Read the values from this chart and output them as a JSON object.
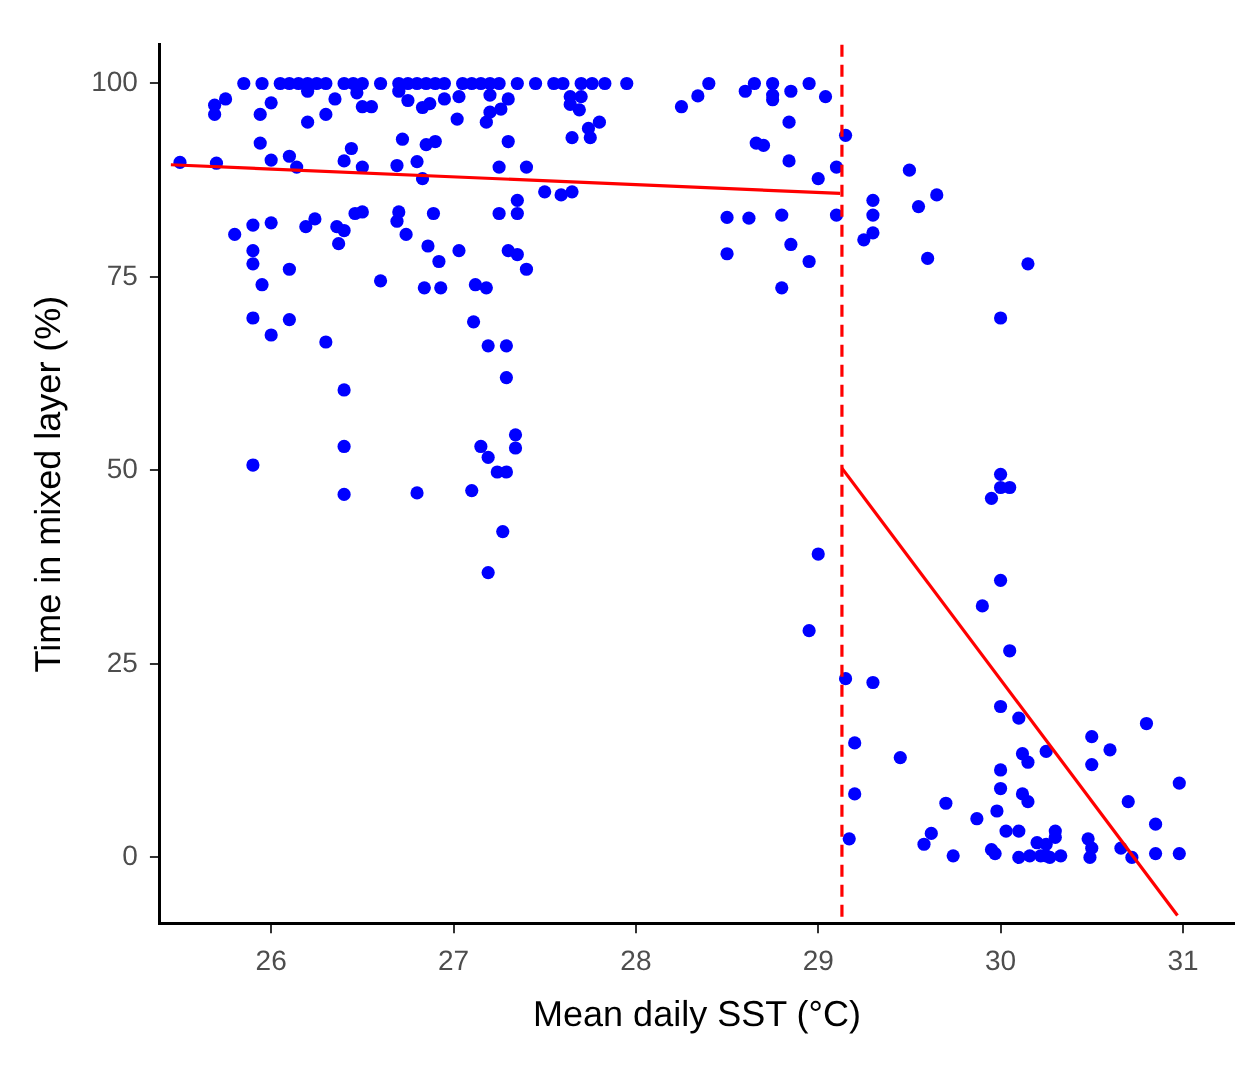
{
  "chart_data": {
    "type": "scatter",
    "xlabel": "Mean daily SST (°C)",
    "ylabel": "Time in mixed layer (%)",
    "xlim": [
      25.39,
      31.28
    ],
    "xticks": [
      26,
      27,
      28,
      29,
      30,
      31
    ],
    "ylim": [
      -8.5,
      105
    ],
    "yticks": [
      0,
      25,
      50,
      75,
      100
    ],
    "grid": false,
    "legend": false,
    "ref_lines": [
      {
        "axis": "x",
        "value": 29.13,
        "color": "#ff0000",
        "line_style": "dashed"
      }
    ],
    "series": [
      {
        "type": "scatter",
        "color": "#0000ff",
        "marker": "circle",
        "x": [
          25.85,
          25.95,
          26.05,
          26.1,
          26.15,
          26.2,
          26.25,
          26.3,
          26.4,
          26.45,
          26.5,
          26.6,
          26.7,
          26.75,
          26.8,
          26.85,
          26.9,
          26.95,
          27.05,
          27.1,
          27.15,
          27.2,
          27.25,
          27.35,
          27.45,
          27.55,
          27.6,
          27.7,
          27.76,
          27.83,
          27.95,
          28.4,
          28.65,
          28.75,
          28.95,
          25.75,
          26.0,
          26.2,
          26.35,
          26.55,
          26.7,
          26.95,
          27.2,
          27.3,
          28.34,
          28.25,
          28.6,
          28.75,
          28.75,
          28.85,
          29.04,
          28.84,
          28.66,
          28.7,
          28.84,
          29.0,
          29.1,
          29.15,
          29.1,
          28.8,
          28.62,
          28.5,
          28.5,
          28.85,
          28.95,
          28.8,
          27.64,
          27.7,
          27.69,
          27.8,
          27.74,
          27.75,
          27.64,
          27.65,
          27.3,
          27.25,
          27.4,
          27.35,
          27.5,
          27.59,
          27.65,
          27.25,
          27.35,
          27.3,
          27.35,
          27.4,
          25.69,
          25.69,
          25.94,
          26.2,
          26.3,
          26.5,
          26.83,
          27.02,
          26.87,
          27.18,
          27.2,
          27.26,
          27.03,
          26.75,
          26.47,
          25.94,
          26.0,
          26.1,
          26.4,
          26.44,
          26.69,
          26.72,
          26.8,
          26.9,
          26.85,
          25.5,
          25.7,
          26.14,
          26.5,
          25.8,
          25.9,
          26.0,
          26.19,
          26.24,
          26.36,
          26.4,
          26.37,
          26.5,
          26.69,
          26.74,
          26.7,
          26.46,
          26.83,
          26.89,
          26.86,
          27.03,
          26.92,
          26.93,
          26.84,
          25.9,
          25.9,
          25.95,
          26.1,
          26.6,
          27.12,
          27.18,
          25.9,
          26.1,
          26.0,
          26.3,
          27.11,
          27.19,
          27.29,
          27.29,
          26.4,
          25.9,
          26.4,
          26.8,
          27.1,
          27.15,
          27.19,
          27.24,
          27.29,
          27.34,
          27.34,
          27.27,
          27.19,
          26.4,
          29.3,
          29.5,
          29.55,
          29.65,
          29.3,
          29.3,
          29.25,
          29.6,
          30.15,
          30.0,
          30.0,
          30.0,
          30.05,
          29.95,
          29.0,
          30.0,
          29.9,
          28.95,
          30.05,
          29.15,
          29.3,
          30.0,
          30.1,
          30.8,
          29.2,
          29.45,
          30.5,
          30.6,
          30.25,
          30.12,
          30.15,
          30.0,
          30.0,
          30.12,
          30.15,
          29.2,
          29.7,
          30.5,
          30.7,
          30.98,
          30.85,
          29.98,
          29.87,
          29.62,
          29.58,
          30.25,
          30.3,
          30.3,
          30.03,
          30.1,
          30.2,
          30.25,
          30.16,
          30.22,
          30.27,
          30.33,
          29.95,
          29.97,
          29.74,
          30.49,
          30.5,
          30.66,
          30.85,
          30.98,
          30.72,
          29.17,
          30.1,
          30.48
        ],
        "values": [
          100,
          100,
          100,
          100,
          100,
          100,
          100,
          100,
          100,
          100,
          100,
          100,
          100,
          100,
          100,
          100,
          100,
          100,
          100,
          100,
          100,
          100,
          100,
          100,
          100,
          100,
          100,
          100,
          100,
          100,
          100,
          100,
          100,
          100,
          100,
          98,
          97.5,
          99,
          98,
          97,
          99,
          98,
          98.5,
          98,
          98.4,
          97,
          99,
          98.5,
          97.9,
          99,
          98.3,
          95,
          92.3,
          92,
          90,
          87.7,
          89.2,
          93.3,
          83,
          83,
          82.6,
          82.7,
          78,
          79.2,
          77,
          73.6,
          98.3,
          98.3,
          96.6,
          95,
          94.2,
          93,
          97.3,
          93,
          92.5,
          89.2,
          89.2,
          84.9,
          86,
          85.6,
          86,
          83.2,
          83.2,
          78.4,
          77.9,
          76,
          97.2,
          96,
          96,
          95,
          96,
          97,
          96.9,
          95.4,
          97.4,
          95,
          96.3,
          96.7,
          98.3,
          97.8,
          98.8,
          92.3,
          90.1,
          90.6,
          90,
          91.6,
          89.4,
          92.8,
          89.9,
          92.5,
          92.1,
          89.8,
          89.7,
          89.2,
          89.2,
          80.5,
          81.7,
          82,
          81.5,
          82.5,
          81.5,
          81,
          79.3,
          83.4,
          82.2,
          80.5,
          83.4,
          83.2,
          87.7,
          83.2,
          79,
          78.4,
          77,
          73.6,
          73.6,
          78.4,
          76.7,
          74,
          76,
          74.5,
          74,
          73.6,
          69.7,
          69.5,
          67.5,
          66.6,
          69.2,
          66.1,
          66.1,
          62,
          53.1,
          50.7,
          46.9,
          47.1,
          47.4,
          53.1,
          51.7,
          49.8,
          49.8,
          54.6,
          52.9,
          42.1,
          36.8,
          60.4,
          84.9,
          88.8,
          84.1,
          85.6,
          83,
          80.7,
          79.8,
          77.4,
          76.7,
          69.7,
          49.5,
          47.8,
          47.8,
          46.4,
          39.2,
          35.8,
          32.5,
          29.3,
          26.7,
          23.1,
          22.6,
          19.5,
          18,
          17.3,
          14.8,
          12.9,
          15.6,
          13.9,
          13.7,
          13.4,
          12.3,
          11.3,
          8.9,
          8.2,
          7.2,
          8.2,
          7,
          12,
          7.2,
          9.6,
          4.3,
          6,
          5,
          3.1,
          1.7,
          1.7,
          3.4,
          2.6,
          3.4,
          3.4,
          1.9,
          0.2,
          0.2,
          0.2,
          0,
          0.2,
          1,
          0.5,
          0.2,
          0,
          1.2,
          1.2,
          0.5,
          0.5,
          0,
          2.4,
          0,
          2.4
        ]
      },
      {
        "type": "line",
        "color": "#ff0000",
        "marker": "none",
        "x": [
          25.45,
          29.12
        ],
        "values": [
          89.5,
          85.8
        ]
      },
      {
        "type": "line",
        "color": "#ff0000",
        "marker": "none",
        "x": [
          29.13,
          30.97
        ],
        "values": [
          50.3,
          -7.5
        ]
      }
    ]
  }
}
